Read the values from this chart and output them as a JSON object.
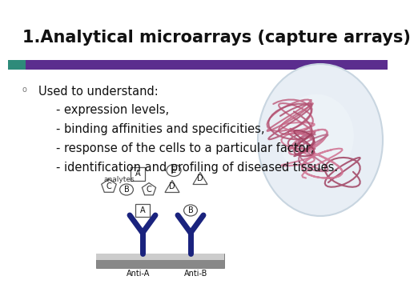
{
  "title": "1.Analytical microarrays (capture arrays)",
  "title_fontsize": 15,
  "title_fontweight": "bold",
  "title_color": "#111111",
  "bg_color": "#ffffff",
  "header_bar_teal": "#2e8b7a",
  "header_bar_purple": "#5b2d8e",
  "bullet_text": "Used to understand:",
  "sub_bullets": [
    "- expression levels,",
    "- binding affinities and specificities,",
    "- response of the cells to a particular factor,",
    "- identification and profiling of diseased tissues."
  ],
  "text_fontsize": 10.5,
  "antibody_color": "#1a237e",
  "base_color_dark": "#888888",
  "base_color_light": "#cccccc",
  "shape_edge_color": "#555555"
}
